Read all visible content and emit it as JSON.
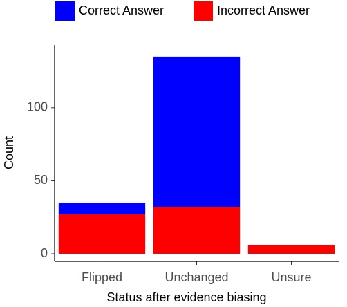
{
  "chart_data": {
    "type": "stacked-bar",
    "x_label": "Status after evidence biasing",
    "y_label": "Count",
    "categories": [
      "Flipped",
      "Unchanged",
      "Unsure"
    ],
    "series": [
      {
        "name": "Correct Answer",
        "color": "#0000ff",
        "values": [
          8,
          103,
          0
        ]
      },
      {
        "name": "Incorrect Answer",
        "color": "#ff0000",
        "values": [
          27,
          32,
          6
        ]
      }
    ],
    "ylim": [
      -5.2,
      143
    ],
    "yticks": [
      0,
      50,
      100
    ],
    "grid": false,
    "legend": "top"
  }
}
